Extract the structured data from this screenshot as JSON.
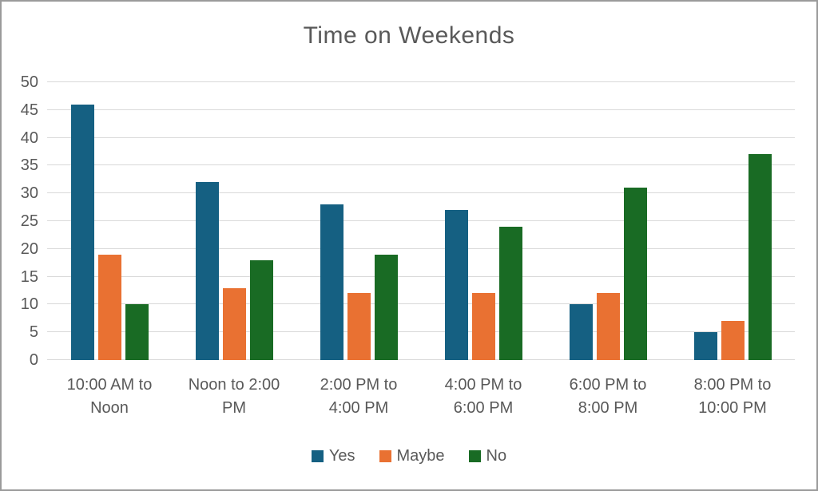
{
  "chart_data": {
    "type": "bar",
    "title": "Time on Weekends",
    "categories": [
      "10:00 AM to Noon",
      "Noon to 2:00 PM",
      "2:00 PM to 4:00 PM",
      "4:00 PM to 6:00 PM",
      "6:00 PM to 8:00 PM",
      "8:00 PM to 10:00 PM"
    ],
    "series": [
      {
        "name": "Yes",
        "color": "#156082",
        "values": [
          46,
          32,
          28,
          27,
          10,
          5
        ]
      },
      {
        "name": "Maybe",
        "color": "#E97132",
        "values": [
          19,
          13,
          12,
          12,
          12,
          7
        ]
      },
      {
        "name": "No",
        "color": "#196B24",
        "values": [
          10,
          18,
          19,
          24,
          31,
          37
        ]
      }
    ],
    "xlabel": "",
    "ylabel": "",
    "ylim": [
      0,
      50
    ],
    "yticks": [
      0,
      5,
      10,
      15,
      20,
      25,
      30,
      35,
      40,
      45,
      50
    ],
    "grid": true,
    "legend_position": "bottom"
  },
  "colors": {
    "text": "#595959",
    "gridline": "#D9D9D9",
    "background": "#FFFFFF",
    "border": "#9B9B9B"
  }
}
